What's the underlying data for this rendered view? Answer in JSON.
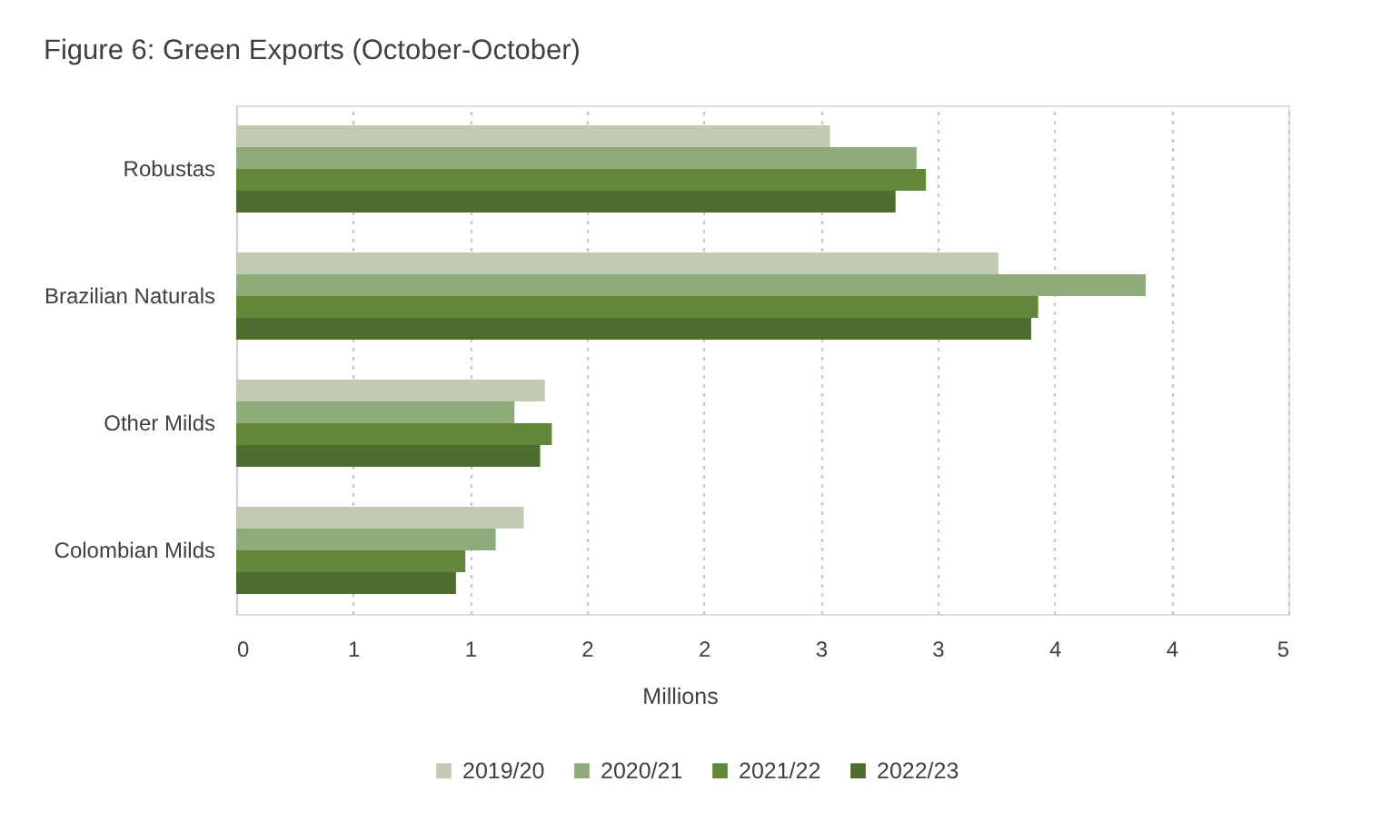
{
  "chart_data": {
    "type": "bar",
    "orientation": "horizontal",
    "title": "Figure 6: Green Exports (October-October)",
    "xlabel": "Millions",
    "categories": [
      "Robustas",
      "Brazilian Naturals",
      "Other Milds",
      "Colombian Milds"
    ],
    "series": [
      {
        "name": "2019/20",
        "color": "#c0cbb2",
        "values": [
          2.54,
          3.26,
          1.32,
          1.23
        ]
      },
      {
        "name": "2020/21",
        "color": "#8fab78",
        "values": [
          2.91,
          3.89,
          1.19,
          1.11
        ]
      },
      {
        "name": "2021/22",
        "color": "#62873a",
        "values": [
          2.95,
          3.43,
          1.35,
          0.98
        ]
      },
      {
        "name": "2022/23",
        "color": "#4e6e30",
        "values": [
          2.82,
          3.4,
          1.3,
          0.94
        ]
      }
    ],
    "xlim": [
      0,
      4.5
    ],
    "xticks": [
      0,
      {
        "value": 0.5,
        "label": "1"
      },
      1,
      {
        "value": 1.5,
        "label": "2"
      },
      2,
      {
        "value": 2.5,
        "label": "3"
      },
      3,
      {
        "value": 3.5,
        "label": "4"
      },
      4,
      {
        "value": 4.5,
        "label": "5"
      }
    ],
    "grid": "x",
    "legend": "bottom"
  }
}
